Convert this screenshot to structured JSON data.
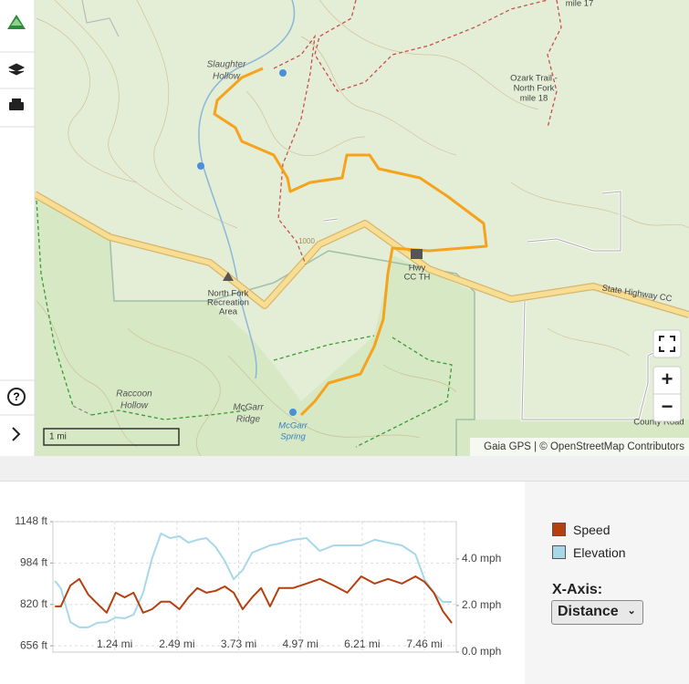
{
  "map": {
    "slaughter_hollow": [
      "Slaughter",
      "Hollow"
    ],
    "ozark_trail": [
      "Ozark Trail -",
      "North Fork",
      "mile 18"
    ],
    "mile_17": "mile 17",
    "recreation_area": [
      "North Fork",
      "Recreation",
      "Area"
    ],
    "hwy_cc_th": [
      "Hwy",
      "CC TH"
    ],
    "raccoon_hollow": [
      "Raccoon",
      "Hollow"
    ],
    "mcgarr_ridge": [
      "McGarr",
      "Ridge"
    ],
    "mcgarr_spring": [
      "McGarr",
      "Spring"
    ],
    "state_highway": "State Highway CC",
    "county_road": "County Road",
    "contour_1000": "1000",
    "scale": "1 mi",
    "attribution": "Gaia GPS | © OpenStreetMap Contributors"
  },
  "ui": {
    "zoom_in": "+",
    "zoom_out": "−",
    "x_axis_label": "X-Axis:",
    "x_axis_option": "Distance"
  },
  "chart_data": {
    "type": "line",
    "x": [
      0.04,
      0.16,
      0.35,
      0.53,
      0.71,
      0.89,
      1.08,
      1.26,
      1.44,
      1.62,
      1.81,
      1.99,
      2.17,
      2.35,
      2.54,
      2.72,
      2.9,
      3.08,
      3.27,
      3.45,
      3.63,
      3.81,
      4.0,
      4.18,
      4.36,
      4.54,
      4.82,
      5.09,
      5.36,
      5.64,
      5.91,
      6.19,
      6.46,
      6.73,
      7.01,
      7.28,
      7.46,
      7.65,
      7.83,
      8.01
    ],
    "series": [
      {
        "name": "Speed",
        "color": "#b5400f",
        "axis": "y2",
        "values": [
          1.96,
          1.96,
          2.86,
          3.14,
          2.47,
          2.08,
          1.69,
          2.55,
          2.35,
          2.55,
          1.69,
          1.84,
          2.16,
          2.16,
          1.84,
          2.35,
          2.75,
          2.55,
          2.63,
          2.82,
          2.55,
          1.84,
          2.35,
          2.75,
          1.96,
          2.75,
          2.75,
          2.94,
          3.14,
          2.86,
          2.55,
          3.25,
          2.94,
          3.14,
          2.94,
          3.25,
          3.02,
          2.55,
          1.76,
          1.25
        ]
      },
      {
        "name": "Elevation",
        "color": "#a8d8e8",
        "values": [
          913,
          884,
          750,
          729,
          729,
          747,
          750,
          768,
          765,
          779,
          866,
          1003,
          1101,
          1083,
          1090,
          1065,
          1076,
          1083,
          1047,
          993,
          920,
          956,
          1025,
          1039,
          1054,
          1061,
          1076,
          1083,
          1032,
          1054,
          1054,
          1054,
          1076,
          1065,
          1054,
          1018,
          920,
          866,
          830,
          830
        ]
      }
    ],
    "xlim": [
      0,
      8.1
    ],
    "xticks": [
      {
        "value": 1.24,
        "label": "1.24 mi"
      },
      {
        "value": 2.49,
        "label": "2.49 mi"
      },
      {
        "value": 3.73,
        "label": "3.73 mi"
      },
      {
        "value": 4.97,
        "label": "4.97 mi"
      },
      {
        "value": 6.21,
        "label": "6.21 mi"
      },
      {
        "value": 7.46,
        "label": "7.46 mi"
      }
    ],
    "ylim": [
      631,
      1148
    ],
    "yticks": [
      {
        "value": 656,
        "label": "656 ft"
      },
      {
        "value": 820,
        "label": "820 ft"
      },
      {
        "value": 984,
        "label": "984 ft"
      },
      {
        "value": 1148,
        "label": "1148 ft"
      }
    ],
    "y2lim": [
      0,
      5.6
    ],
    "y2ticks": [
      {
        "value": 0,
        "label": "0.0 mph"
      },
      {
        "value": 2,
        "label": "2.0 mph"
      },
      {
        "value": 4,
        "label": "4.0 mph"
      }
    ],
    "grid": true
  }
}
